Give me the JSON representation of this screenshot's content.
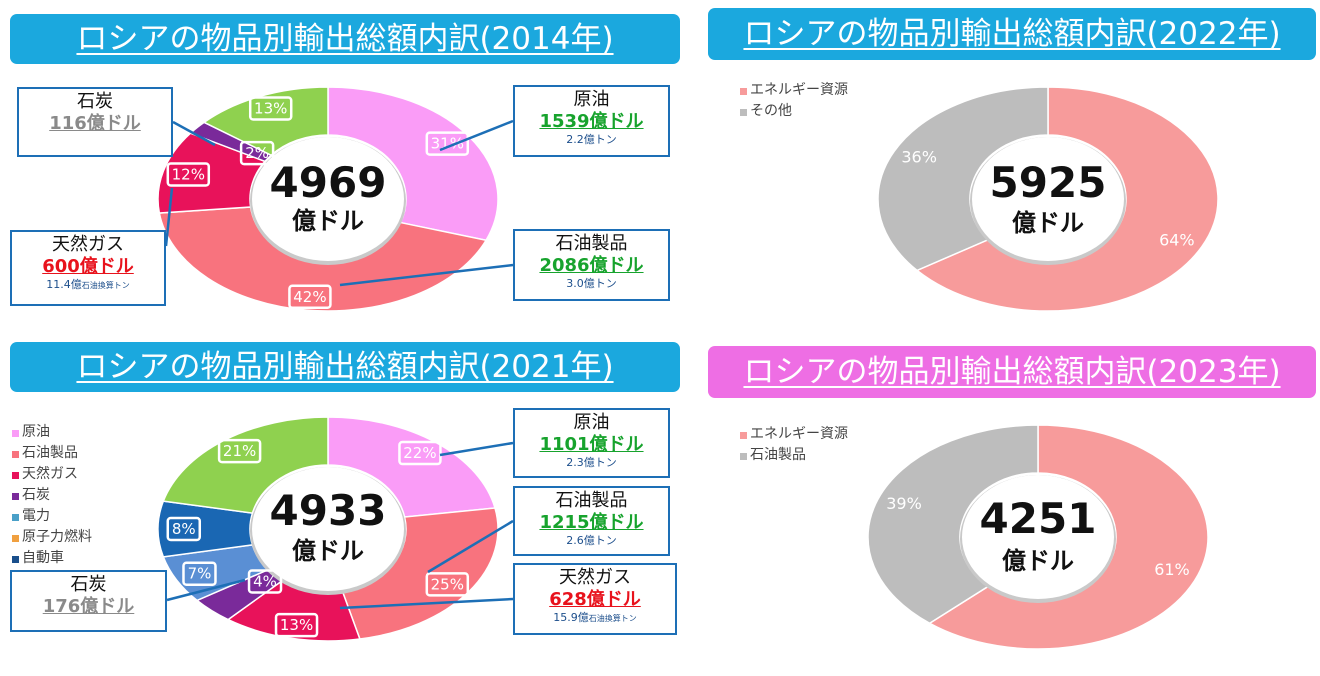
{
  "charts": [
    {
      "title": "ロシアの物品別輸出総額内訳(2014年)",
      "title_color": "#1ba8de",
      "center_value": "4969",
      "center_unit": "億ドル",
      "legend": [],
      "callouts": [
        {
          "name": "石炭",
          "value": "116億ドル",
          "value_color": "#8a8a8a",
          "sub": ""
        },
        {
          "name": "天然ガス",
          "value": "600億ドル",
          "value_color": "#e8121c",
          "sub": "11.4億",
          "sub_small": "石油換算トン"
        },
        {
          "name": "原油",
          "value": "1539億ドル",
          "value_color": "#17a32d",
          "sub": "2.2億トン",
          "sub_small": ""
        },
        {
          "name": "石油製品",
          "value": "2086億ドル",
          "value_color": "#17a32d",
          "sub": "3.0億トン",
          "sub_small": ""
        }
      ]
    },
    {
      "title": "ロシアの物品別輸出総額内訳(2022年)",
      "title_color": "#1ba8de",
      "center_value": "5925",
      "center_unit": "億ドル",
      "legend": [
        "エネルギー資源",
        "その他"
      ],
      "callouts": []
    },
    {
      "title": "ロシアの物品別輸出総額内訳(2021年)",
      "title_color": "#1ba8de",
      "center_value": "4933",
      "center_unit": "億ドル",
      "legend": [
        "原油",
        "石油製品",
        "天然ガス",
        "石炭",
        "電力",
        "原子力燃料",
        "自動車"
      ],
      "callouts": [
        {
          "name": "原油",
          "value": "1101億ドル",
          "value_color": "#17a32d",
          "sub": "2.3億トン",
          "sub_small": ""
        },
        {
          "name": "石油製品",
          "value": "1215億ドル",
          "value_color": "#17a32d",
          "sub": "2.6億トン",
          "sub_small": ""
        },
        {
          "name": "天然ガス",
          "value": "628億ドル",
          "value_color": "#e8121c",
          "sub": "15.9億",
          "sub_small": "石油換算トン"
        },
        {
          "name": "石炭",
          "value": "176億ドル",
          "value_color": "#8a8a8a",
          "sub": "",
          "sub_small": ""
        }
      ]
    },
    {
      "title": "ロシアの物品別輸出総額内訳(2023年)",
      "title_color": "#ee6ee4",
      "center_value": "4251",
      "center_unit": "億ドル",
      "legend": [
        "エネルギー資源",
        "石油製品"
      ],
      "callouts": []
    }
  ],
  "chart_data": [
    {
      "type": "pie",
      "donut": true,
      "title": "ロシアの物品別輸出総額内訳(2014年)",
      "total": "4969億ドル",
      "slices": [
        {
          "label": "原油",
          "value": 31,
          "display": "31%",
          "color": "#fa9cf7"
        },
        {
          "label": "石油製品",
          "value": 42,
          "display": "42%",
          "color": "#f8737e"
        },
        {
          "label": "天然ガス",
          "value": 12,
          "display": "12%",
          "color": "#e8125a"
        },
        {
          "label": "石炭",
          "value": 2,
          "display": "2%",
          "color": "#7a2a9a"
        },
        {
          "label": "",
          "value": 13,
          "display": "13%",
          "color": "#8fd14f"
        }
      ]
    },
    {
      "type": "pie",
      "donut": true,
      "title": "ロシアの物品別輸出総額内訳(2022年)",
      "total": "5925億ドル",
      "slices": [
        {
          "label": "エネルギー資源",
          "value": 64,
          "display": "64%",
          "color": "#f79b9b"
        },
        {
          "label": "その他",
          "value": 36,
          "display": "36%",
          "color": "#bdbdbd"
        }
      ]
    },
    {
      "type": "pie",
      "donut": true,
      "title": "ロシアの物品別輸出総額内訳(2021年)",
      "total": "4933億ドル",
      "slices": [
        {
          "label": "原油",
          "value": 22,
          "display": "22%",
          "color": "#fa9cf7"
        },
        {
          "label": "石油製品",
          "value": 25,
          "display": "25%",
          "color": "#f8737e"
        },
        {
          "label": "天然ガス",
          "value": 13,
          "display": "13%",
          "color": "#e8125a"
        },
        {
          "label": "石炭",
          "value": 4,
          "display": "4%",
          "color": "#7a2a9a"
        },
        {
          "label": "電力",
          "value": 7,
          "display": "7%",
          "color": "#5a8fd4"
        },
        {
          "label": "原子力燃料",
          "value": 8,
          "display": "8%",
          "color": "#1a67b3"
        },
        {
          "label": "",
          "value": 21,
          "display": "21%",
          "color": "#8fd14f"
        }
      ],
      "legend_colors": [
        "#fa9cf7",
        "#f8737e",
        "#e8125a",
        "#7a2a9a",
        "#4aa0c8",
        "#f0a040",
        "#1a4f8c"
      ]
    },
    {
      "type": "pie",
      "donut": true,
      "title": "ロシアの物品別輸出総額内訳(2023年)",
      "total": "4251億ドル",
      "slices": [
        {
          "label": "エネルギー資源",
          "value": 61,
          "display": "61%",
          "color": "#f79b9b"
        },
        {
          "label": "石油製品",
          "value": 39,
          "display": "39%",
          "color": "#bdbdbd"
        }
      ]
    }
  ]
}
